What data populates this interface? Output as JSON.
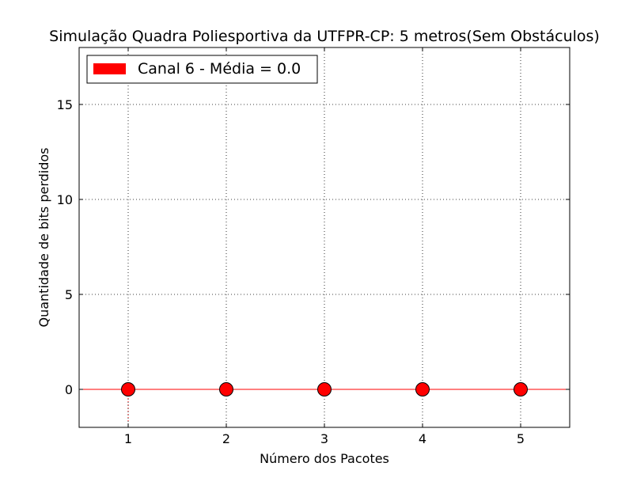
{
  "chart_data": {
    "type": "scatter",
    "title": "Simulação Quadra Poliesportiva da UTFPR-CP: 5 metros(Sem Obstáculos)",
    "xlabel": "Número dos Pacotes",
    "ylabel": "Quantidade de bits perdidos",
    "xlim": [
      0.5,
      5.5
    ],
    "ylim": [
      -2,
      18
    ],
    "xticks": [
      1,
      2,
      3,
      4,
      5
    ],
    "yticks": [
      0,
      5,
      10,
      15
    ],
    "grid": true,
    "grid_style": "dotted",
    "legend_position": "top-left",
    "legend": [
      {
        "label": "Canal 6 - Média = 0.0",
        "color": "#ff0000",
        "marker": "patch"
      }
    ],
    "series": [
      {
        "name": "Canal 6 - Média = 0.0",
        "color": "#ff0000",
        "marker": "circle",
        "x": [
          1,
          2,
          3,
          4,
          5
        ],
        "y": [
          0,
          0,
          0,
          0,
          0
        ]
      }
    ],
    "reference_lines": [
      {
        "orientation": "horizontal",
        "value": 0,
        "color": "#ff0000"
      },
      {
        "orientation": "vertical",
        "value": 1,
        "color": "#ff0000",
        "style": "dotted",
        "from": -2,
        "to": 0
      }
    ]
  }
}
